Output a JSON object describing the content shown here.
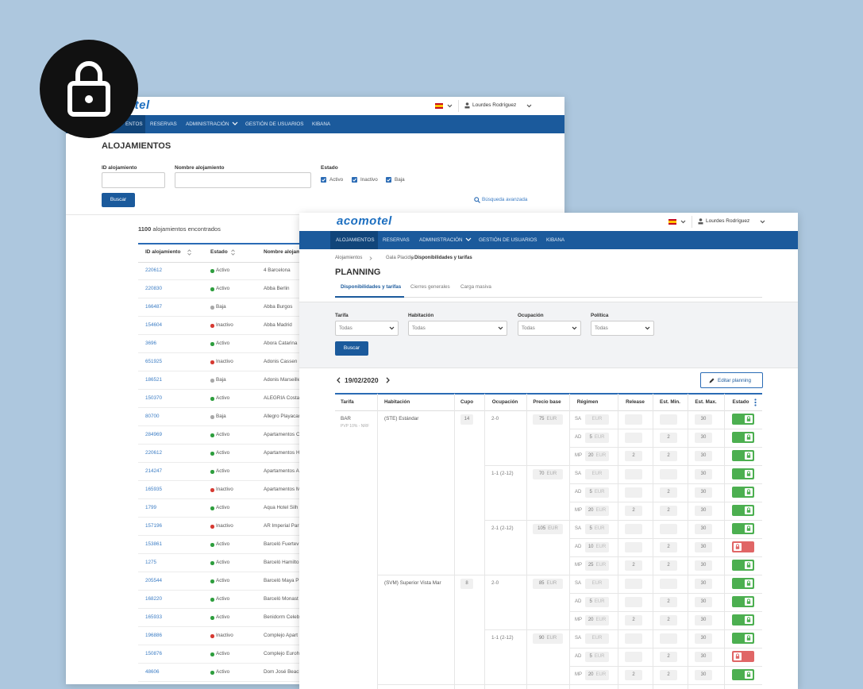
{
  "back_window": {
    "logo": "otel",
    "user": "Lourdes Rodríguez",
    "nav": [
      "ENTOS",
      "RESERVAS",
      "ADMINISTRACIÓN",
      "GESTIÓN DE USUARIOS",
      "KIBANA"
    ],
    "title": "ALOJAMIENTOS",
    "filters": {
      "id_label": "ID alojamiento",
      "name_label": "Nombre alojamiento",
      "estado_label": "Estado",
      "checks": [
        "Activo",
        "Inactivo",
        "Baja"
      ],
      "button": "Buscar",
      "advanced": "Búsqueda avanzada"
    },
    "count": "1100",
    "count_text": "alojamientos encontrados",
    "columns": [
      "ID alojamiento",
      "Estado",
      "Nombre alojam"
    ],
    "rows": [
      {
        "id": "220612",
        "estado": "Activo",
        "nombre": "4 Barcelona",
        "color": "#2e9e3e"
      },
      {
        "id": "220830",
        "estado": "Activo",
        "nombre": "Abba Berlin",
        "color": "#2e9e3e"
      },
      {
        "id": "166487",
        "estado": "Baja",
        "nombre": "Abba Burgos",
        "color": "#a8a8a8"
      },
      {
        "id": "154604",
        "estado": "Inactivo",
        "nombre": "Abba Madrid",
        "color": "#d63a32"
      },
      {
        "id": "3696",
        "estado": "Activo",
        "nombre": "Abora Catarina",
        "color": "#2e9e3e"
      },
      {
        "id": "651925",
        "estado": "Inactivo",
        "nombre": "Adonis Cassen",
        "color": "#d63a32"
      },
      {
        "id": "186521",
        "estado": "Baja",
        "nombre": "Adonis Marseille",
        "color": "#a8a8a8"
      },
      {
        "id": "150370",
        "estado": "Activo",
        "nombre": "ALEGRIA Costa",
        "color": "#2e9e3e"
      },
      {
        "id": "80700",
        "estado": "Baja",
        "nombre": "Allegro Playacar",
        "color": "#a8a8a8"
      },
      {
        "id": "284969",
        "estado": "Activo",
        "nombre": "Apartamentos C",
        "color": "#2e9e3e"
      },
      {
        "id": "220612",
        "estado": "Activo",
        "nombre": "Apartamentos H",
        "color": "#2e9e3e"
      },
      {
        "id": "214247",
        "estado": "Activo",
        "nombre": "Apartamentos A",
        "color": "#2e9e3e"
      },
      {
        "id": "165935",
        "estado": "Inactivo",
        "nombre": "Apartamentos M",
        "color": "#d63a32"
      },
      {
        "id": "1799",
        "estado": "Activo",
        "nombre": "Aqua Hotel Silh",
        "color": "#2e9e3e"
      },
      {
        "id": "157196",
        "estado": "Inactivo",
        "nombre": "AR Imperial Park",
        "color": "#d63a32"
      },
      {
        "id": "153861",
        "estado": "Activo",
        "nombre": "Barceló Fuertev",
        "color": "#2e9e3e"
      },
      {
        "id": "1275",
        "estado": "Activo",
        "nombre": "Barceló Hamilto",
        "color": "#2e9e3e"
      },
      {
        "id": "205544",
        "estado": "Activo",
        "nombre": "Barceló Maya P",
        "color": "#2e9e3e"
      },
      {
        "id": "168220",
        "estado": "Activo",
        "nombre": "Barceló Monast",
        "color": "#2e9e3e"
      },
      {
        "id": "165933",
        "estado": "Activo",
        "nombre": "Benidorm Celeb",
        "color": "#2e9e3e"
      },
      {
        "id": "196886",
        "estado": "Inactivo",
        "nombre": "Complejo Apart",
        "color": "#d63a32"
      },
      {
        "id": "150876",
        "estado": "Activo",
        "nombre": "Complejo Euroh",
        "color": "#2e9e3e"
      },
      {
        "id": "48606",
        "estado": "Activo",
        "nombre": "Dom José Beach",
        "color": "#2e9e3e"
      }
    ]
  },
  "front_window": {
    "logo": "acomotel",
    "user": "Lourdes Rodríguez",
    "nav": [
      "ALOJAMIENTOS",
      "RESERVAS",
      "ADMINISTRACIÓN",
      "GESTIÓN DE USUARIOS",
      "KIBANA"
    ],
    "breadcrumb": [
      "Alojamientos",
      "Gala Placidia",
      "Disponibilidades y tarifas"
    ],
    "title": "PLANNING",
    "tabs": [
      "Disponibilidades y tarifas",
      "Cierres generales",
      "Carga masiva"
    ],
    "filters": [
      {
        "label": "Tarifa",
        "value": "Todas"
      },
      {
        "label": "Habitación",
        "value": "Todas"
      },
      {
        "label": "Ocupación",
        "value": "Todas"
      },
      {
        "label": "Política",
        "value": "Todas"
      }
    ],
    "button": "Buscar",
    "date": "19/02/2020",
    "edit_button": "Editar planning",
    "columns": [
      "Tarifa",
      "Habitación",
      "Cupo",
      "Ocupación",
      "Precio base",
      "Régimen",
      "Release",
      "Est. Min.",
      "Est. Max.",
      "Estado"
    ],
    "tarifa": {
      "name": "BAR",
      "note": "PVP 10% - NRF"
    },
    "rooms": [
      {
        "name": "(STE) Estándar",
        "cupo": "14",
        "occupancies": [
          {
            "name": "2-0",
            "price": "75",
            "currency": "EUR",
            "regimes": [
              {
                "code": "SA",
                "currency": "EUR",
                "est_max": "30",
                "open": true
              },
              {
                "code": "AD",
                "amount": "5",
                "currency": "EUR",
                "est_min": "2",
                "est_max": "30",
                "open": true
              },
              {
                "code": "MP",
                "amount": "20",
                "currency": "EUR",
                "release": "2",
                "est_min": "2",
                "est_max": "30",
                "open": true
              }
            ]
          },
          {
            "name": "1-1 (2-12)",
            "price": "70",
            "currency": "EUR",
            "regimes": [
              {
                "code": "SA",
                "currency": "EUR",
                "est_max": "30",
                "open": true
              },
              {
                "code": "AD",
                "amount": "5",
                "currency": "EUR",
                "est_min": "2",
                "est_max": "30",
                "open": true
              },
              {
                "code": "MP",
                "amount": "20",
                "currency": "EUR",
                "release": "2",
                "est_min": "2",
                "est_max": "30",
                "open": true
              }
            ]
          },
          {
            "name": "2-1 (2-12)",
            "price": "105",
            "currency": "EUR",
            "regimes": [
              {
                "code": "SA",
                "amount": "5",
                "currency": "EUR",
                "est_max": "30",
                "open": true
              },
              {
                "code": "AD",
                "amount": "10",
                "currency": "EUR",
                "est_min": "2",
                "est_max": "30",
                "open": false
              },
              {
                "code": "MP",
                "amount": "25",
                "currency": "EUR",
                "release": "2",
                "est_min": "2",
                "est_max": "30",
                "open": true
              }
            ]
          }
        ]
      },
      {
        "name": "(SVM) Superior Vista Mar",
        "cupo": "8",
        "occupancies": [
          {
            "name": "2-0",
            "price": "85",
            "currency": "EUR",
            "regimes": [
              {
                "code": "SA",
                "currency": "EUR",
                "est_max": "30",
                "open": true
              },
              {
                "code": "AD",
                "amount": "5",
                "currency": "EUR",
                "est_min": "2",
                "est_max": "30",
                "open": true
              },
              {
                "code": "MP",
                "amount": "20",
                "currency": "EUR",
                "release": "2",
                "est_min": "2",
                "est_max": "30",
                "open": true
              }
            ]
          },
          {
            "name": "1-1 (2-12)",
            "price": "90",
            "currency": "EUR",
            "regimes": [
              {
                "code": "SA",
                "currency": "EUR",
                "est_max": "30",
                "open": true
              },
              {
                "code": "AD",
                "amount": "5",
                "currency": "EUR",
                "est_min": "2",
                "est_max": "30",
                "open": false
              },
              {
                "code": "MP",
                "amount": "20",
                "currency": "EUR",
                "release": "2",
                "est_min": "2",
                "est_max": "30",
                "open": true
              }
            ]
          }
        ]
      }
    ]
  }
}
